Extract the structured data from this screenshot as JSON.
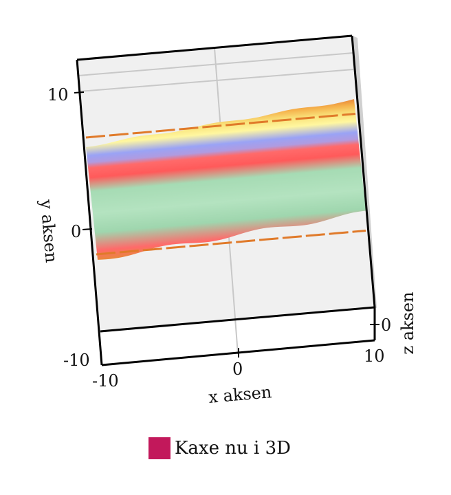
{
  "chart_data": {
    "type": "surface-3d",
    "xlabel": "x aksen",
    "ylabel": "y aksen",
    "zlabel": "z aksen",
    "x_ticks": [
      "-10",
      "0",
      "10"
    ],
    "y_ticks": [
      "-10",
      "0",
      "10"
    ],
    "z_ticks": [
      "0"
    ],
    "xlim": [
      -10,
      10
    ],
    "ylim": [
      -10,
      10
    ],
    "grid": true,
    "legend_position": "bottom-center",
    "series": [
      {
        "name": "Kaxe nu i 3D",
        "color": "#c2185b"
      }
    ],
    "surface_bands": [
      {
        "color": "#e8883a"
      },
      {
        "color": "#f5b04a"
      },
      {
        "color": "#f9e27a"
      },
      {
        "color": "#fff7a0"
      },
      {
        "color": "#9aa3f5"
      },
      {
        "color": "#b09be0"
      },
      {
        "color": "#ff6a6a"
      },
      {
        "color": "#ff5a5a"
      },
      {
        "color": "#a6dbb4"
      },
      {
        "color": "#b4e3c0"
      },
      {
        "color": "#9fd6ae"
      },
      {
        "color": "#ff6a6a"
      },
      {
        "color": "#e8883a"
      }
    ]
  },
  "colors": {
    "pane": "#f0f0f0",
    "grid": "#c8c8c8",
    "axis": "#000000"
  }
}
